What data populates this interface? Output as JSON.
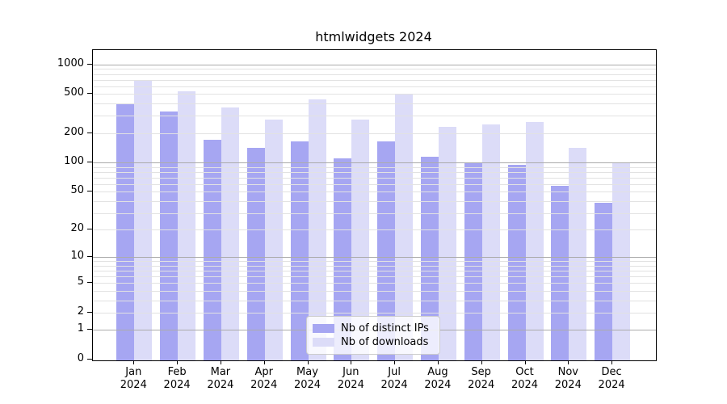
{
  "title": "htmlwidgets 2024",
  "chart_data": {
    "type": "bar",
    "subtype": "grouped, log-like y scale (log10(value+1))",
    "title": "htmlwidgets 2024",
    "categories": [
      "Jan 2024",
      "Feb 2024",
      "Mar 2024",
      "Apr 2024",
      "May 2024",
      "Jun 2024",
      "Jul 2024",
      "Aug 2024",
      "Sep 2024",
      "Oct 2024",
      "Nov 2024",
      "Dec 2024"
    ],
    "series": [
      {
        "name": "Nb of distinct IPs",
        "color": "#a6a6f2",
        "values": [
          395,
          330,
          170,
          140,
          165,
          110,
          165,
          115,
          100,
          95,
          57,
          38
        ]
      },
      {
        "name": "Nb of downloads",
        "color": "#dcdcf8",
        "values": [
          685,
          535,
          365,
          275,
          440,
          275,
          505,
          230,
          245,
          260,
          140,
          100
        ]
      }
    ],
    "xlabel": "",
    "ylabel": "",
    "yticks": [
      0,
      1,
      2,
      5,
      10,
      20,
      50,
      100,
      200,
      500,
      1000
    ],
    "ylim": [
      0,
      1460
    ],
    "grid": "on, minor log gridlines, drawn above bars",
    "legend_position": "lower center inside plot",
    "colors": {
      "major_gridline": "#ababab",
      "minor_gridline": "#e2e2e2",
      "axis": "#000000",
      "legend_border": "#cccccc",
      "legend_background": "rgba(255,255,255,0.8)"
    }
  }
}
